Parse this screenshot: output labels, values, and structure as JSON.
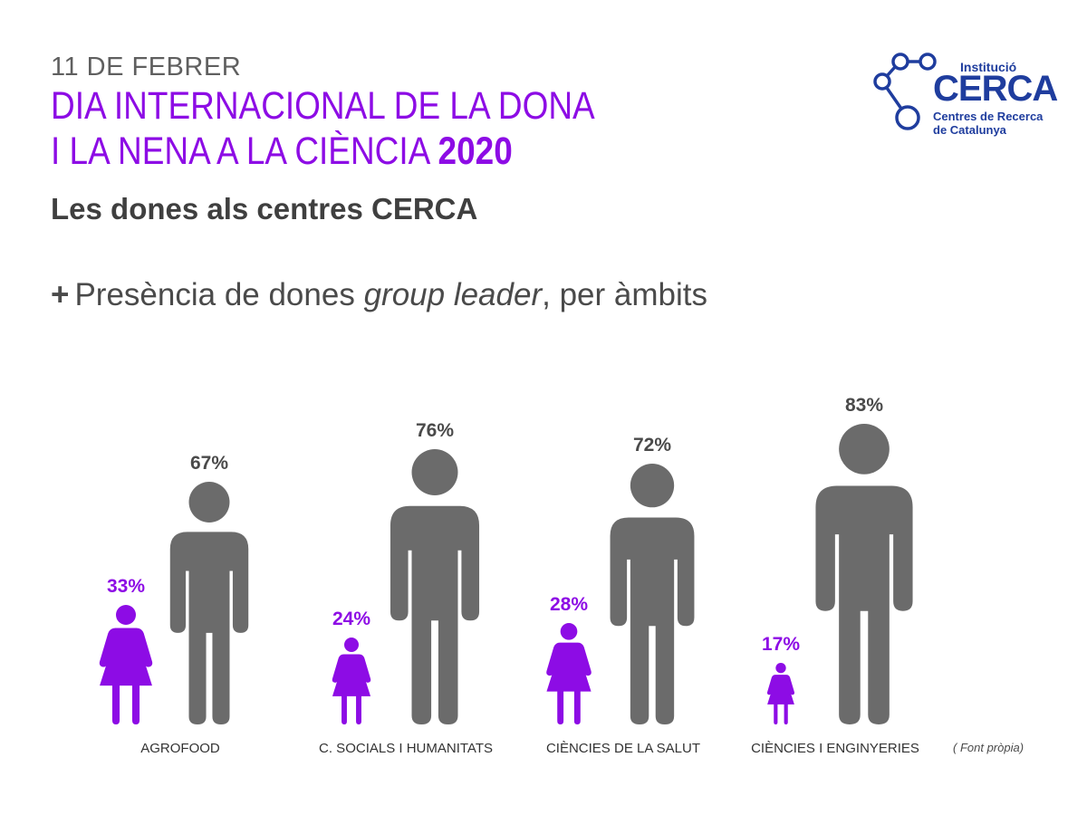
{
  "header": {
    "date": "11 DE FEBRER",
    "title_line1": "DIA INTERNACIONAL DE LA DONA",
    "title_line2": "I LA NENA A LA CIÈNCIA",
    "title_year": "2020",
    "subtitle": "Les dones als centres CERCA"
  },
  "section": {
    "plus": "+",
    "text_before": "Presència de dones",
    "text_italic": "group leader",
    "text_after": ", per àmbits"
  },
  "logo": {
    "institucio": "Institució",
    "name": "CERCA",
    "sub_line1": "Centres de Recerca",
    "sub_line2": "de Catalunya"
  },
  "source": "( Font pròpia)",
  "colors": {
    "purple": "#8d0ce5",
    "gray": "#6b6b6b",
    "label_gray": "#4a4a4a",
    "logo_blue": "#1f3d9e"
  },
  "chart_data": {
    "type": "bar",
    "categories": [
      "AGROFOOD",
      "C. SOCIALS I HUMANITATS",
      "CIÈNCIES DE LA SALUT",
      "CIÈNCIES I ENGINYERIES"
    ],
    "series": [
      {
        "values": [
          33,
          24,
          28,
          17
        ],
        "value_labels": [
          "33%",
          "24%",
          "28%",
          "17%"
        ],
        "color": "#8d0ce5",
        "icon": "woman-icon"
      },
      {
        "values": [
          67,
          76,
          72,
          83
        ],
        "value_labels": [
          "67%",
          "76%",
          "72%",
          "83%"
        ],
        "color": "#6b6b6b",
        "icon": "man-icon"
      }
    ],
    "unit": "%",
    "ylim": [
      0,
      100
    ]
  }
}
